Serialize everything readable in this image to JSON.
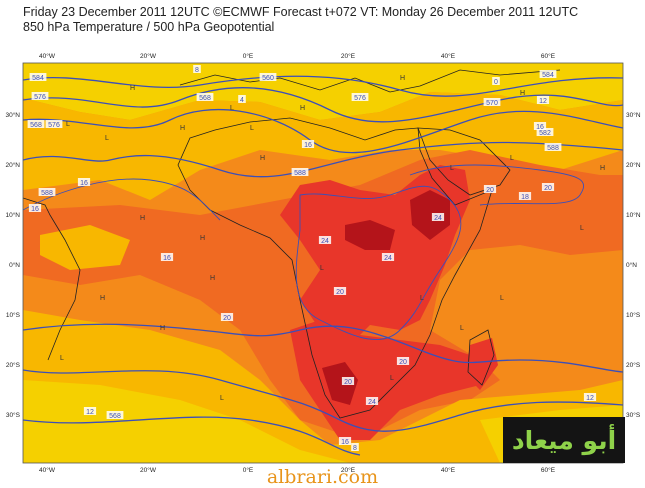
{
  "header": {
    "line1": "Friday 23 December 2011 12UTC ©ECMWF Forecast t+072 VT: Monday 26 December 2011 12UTC",
    "line2": "850 hPa Temperature / 500 hPa Geopotential"
  },
  "axes": {
    "lon_labels": [
      "40°W",
      "20°W",
      "0°E",
      "20°E",
      "40°E",
      "60°E"
    ],
    "lat_labels": [
      "30°N",
      "20°N",
      "10°N",
      "0°N",
      "10°S",
      "20°S",
      "30°S"
    ]
  },
  "contour_labels": [
    {
      "t": "584"
    },
    {
      "t": "576"
    },
    {
      "t": "568"
    },
    {
      "t": "576"
    },
    {
      "t": "560"
    },
    {
      "t": "568"
    },
    {
      "t": "570"
    },
    {
      "t": "584"
    },
    {
      "t": "582"
    },
    {
      "t": "588"
    },
    {
      "t": "588"
    },
    {
      "t": "588"
    },
    {
      "t": "16"
    },
    {
      "t": "16"
    },
    {
      "t": "16"
    },
    {
      "t": "16"
    },
    {
      "t": "18"
    },
    {
      "t": "20"
    },
    {
      "t": "20"
    },
    {
      "t": "20"
    },
    {
      "t": "24"
    },
    {
      "t": "24"
    },
    {
      "t": "24"
    },
    {
      "t": "20"
    },
    {
      "t": "20"
    },
    {
      "t": "20"
    },
    {
      "t": "24"
    },
    {
      "t": "16"
    },
    {
      "t": "12"
    },
    {
      "t": "12"
    },
    {
      "t": "568"
    },
    {
      "t": "576"
    },
    {
      "t": "16"
    },
    {
      "t": "8"
    },
    {
      "t": "4"
    },
    {
      "t": "0"
    },
    {
      "t": "8"
    },
    {
      "t": "12"
    }
  ],
  "pressure_marks": [
    "H",
    "H",
    "H",
    "H",
    "H",
    "H",
    "H",
    "H",
    "H",
    "H",
    "H",
    "H",
    "L",
    "L",
    "L",
    "L",
    "L",
    "L",
    "L",
    "L",
    "L",
    "L",
    "L",
    "L",
    "L",
    "L"
  ],
  "colors": {
    "cold_yellow": "#f5d000",
    "yellow_orange": "#f8b700",
    "orange": "#f48a1a",
    "deep_orange": "#f06a22",
    "red": "#e8362a",
    "dark_red": "#b4141a",
    "contour": "#3c4fb8",
    "coast": "#222222"
  },
  "watermark": {
    "arabic": "أبو ميعاد",
    "url": "albrari.com"
  }
}
